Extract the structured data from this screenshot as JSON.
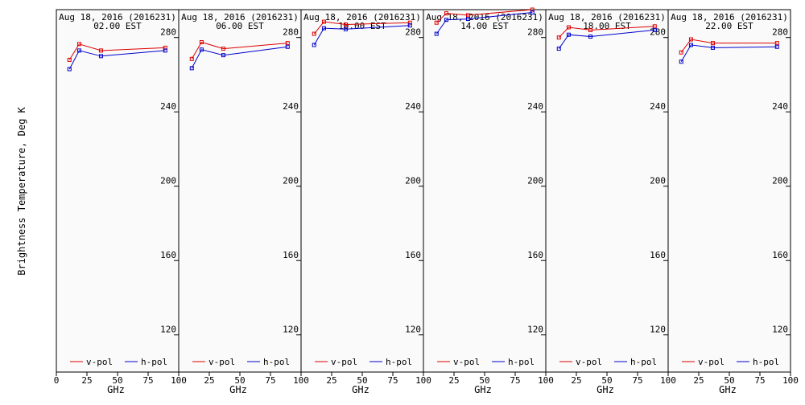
{
  "ylabel": "Brightness Temperature, Deg K",
  "xlabel": "GHz",
  "colors": {
    "v_pol": "#dd0000",
    "h_pol": "#0000cc",
    "panel_bg": "#fafafa",
    "frame": "#000000"
  },
  "legend": {
    "v_label": "v-pol",
    "h_label": "h-pol"
  },
  "panel_x_ticks": [
    [
      "0",
      "25",
      "50",
      "75"
    ],
    [
      "100",
      "25",
      "50",
      "75"
    ],
    [
      "100",
      "25",
      "50",
      "75"
    ],
    [
      "100",
      "25",
      "50",
      "75"
    ],
    [
      "100",
      "25",
      "50",
      "75"
    ],
    [
      "100",
      "25",
      "50",
      "75",
      "100"
    ]
  ],
  "chart_data": [
    {
      "type": "line",
      "title": "Aug 18, 2016 (2016231)",
      "subtitle": "02.00 EST",
      "x": [
        10.7,
        18.7,
        36.5,
        89.0
      ],
      "xlim": [
        0,
        100
      ],
      "ylim": [
        100,
        295
      ],
      "yticks": [
        120,
        160,
        200,
        240,
        280
      ],
      "grid": false,
      "legend_position": "bottom",
      "series": [
        {
          "name": "v-pol",
          "values": [
            268,
            276.5,
            273,
            274.5
          ]
        },
        {
          "name": "h-pol",
          "values": [
            263,
            273,
            270,
            273
          ]
        }
      ]
    },
    {
      "type": "line",
      "title": "Aug 18, 2016 (2016231)",
      "subtitle": "06.00 EST",
      "x": [
        10.7,
        18.7,
        36.5,
        89.0
      ],
      "xlim": [
        0,
        100
      ],
      "ylim": [
        100,
        295
      ],
      "yticks": [
        120,
        160,
        200,
        240,
        280
      ],
      "grid": false,
      "legend_position": "bottom",
      "series": [
        {
          "name": "v-pol",
          "values": [
            268.5,
            277.5,
            274,
            277
          ]
        },
        {
          "name": "h-pol",
          "values": [
            263.5,
            273.5,
            270.5,
            275
          ]
        }
      ]
    },
    {
      "type": "line",
      "title": "Aug 18, 2016 (2016231)",
      "subtitle": "10.00 EST",
      "x": [
        10.7,
        18.7,
        36.5,
        89.0
      ],
      "xlim": [
        0,
        100
      ],
      "ylim": [
        100,
        295
      ],
      "yticks": [
        120,
        160,
        200,
        240,
        280
      ],
      "grid": false,
      "legend_position": "bottom",
      "series": [
        {
          "name": "v-pol",
          "values": [
            282,
            288.5,
            287,
            288
          ]
        },
        {
          "name": "h-pol",
          "values": [
            276,
            285,
            284.5,
            286.5
          ]
        }
      ]
    },
    {
      "type": "line",
      "title": "Aug 18, 2016 (2016231)",
      "subtitle": "14.00 EST",
      "x": [
        10.7,
        18.7,
        36.5,
        89.0
      ],
      "xlim": [
        0,
        100
      ],
      "ylim": [
        100,
        295
      ],
      "yticks": [
        120,
        160,
        200,
        240,
        280
      ],
      "grid": false,
      "legend_position": "bottom",
      "series": [
        {
          "name": "v-pol",
          "values": [
            288,
            293,
            292,
            295
          ]
        },
        {
          "name": "h-pol",
          "values": [
            282,
            289.5,
            290,
            293.5
          ]
        }
      ]
    },
    {
      "type": "line",
      "title": "Aug 18, 2016 (2016231)",
      "subtitle": "18.00 EST",
      "x": [
        10.7,
        18.7,
        36.5,
        89.0
      ],
      "xlim": [
        0,
        100
      ],
      "ylim": [
        100,
        295
      ],
      "yticks": [
        120,
        160,
        200,
        240,
        280
      ],
      "grid": false,
      "legend_position": "bottom",
      "series": [
        {
          "name": "v-pol",
          "values": [
            280,
            285.5,
            284,
            286
          ]
        },
        {
          "name": "h-pol",
          "values": [
            274,
            281.5,
            280.5,
            284
          ]
        }
      ]
    },
    {
      "type": "line",
      "title": "Aug 18, 2016 (2016231)",
      "subtitle": "22.00 EST",
      "x": [
        10.7,
        18.7,
        36.5,
        89.0
      ],
      "xlim": [
        0,
        100
      ],
      "ylim": [
        100,
        295
      ],
      "yticks": [
        120,
        160,
        200,
        240,
        280
      ],
      "grid": false,
      "legend_position": "bottom",
      "series": [
        {
          "name": "v-pol",
          "values": [
            272,
            279,
            277,
            277
          ]
        },
        {
          "name": "h-pol",
          "values": [
            267,
            276,
            274.5,
            275
          ]
        }
      ]
    }
  ]
}
